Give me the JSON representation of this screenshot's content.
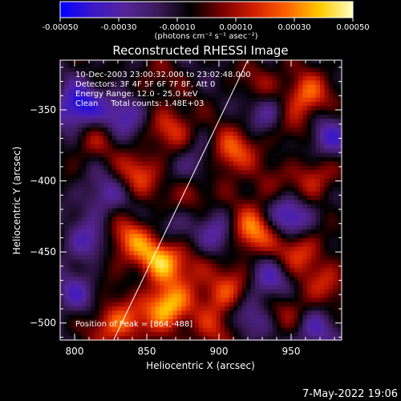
{
  "chart_data": {
    "type": "heatmap",
    "title": "Reconstructed RHESSI Image",
    "xlabel": "Heliocentric X (arcsec)",
    "ylabel": "Heliocentric Y (arcsec)",
    "xlim": [
      790,
      985
    ],
    "ylim": [
      -512,
      -315
    ],
    "x_ticks": [
      800,
      850,
      900,
      950
    ],
    "y_ticks": [
      -350,
      -400,
      -450,
      -500
    ],
    "colorbar": {
      "range": [
        -0.0005,
        0.0005
      ],
      "ticks": [
        "-0.00050",
        "-0.00030",
        "-0.00010",
        "0.00010",
        "0.00030",
        "0.00050"
      ],
      "unit_label": "(photons cm⁻² s⁻¹ asec⁻²)",
      "colormap": [
        "#0000ff",
        "#3a18c8",
        "#55249a",
        "#3b1a58",
        "#000000",
        "#7a0000",
        "#d42000",
        "#ff6600",
        "#ffcc00",
        "#ffffc0"
      ]
    },
    "annotations": [
      "10-Dec-2003 23:00:32.000 to 23:02:48.000",
      "Detectors: 3F 4F 5F 6F 7F 8F, Att 0",
      "Energy Range: 12.0 - 25.0 keV",
      "Clean     Total counts: 1.48E+03"
    ],
    "peak_label": "Position of Peak = [864,-488]",
    "limb_line": {
      "x": [
        827,
        920
      ],
      "y": [
        -512,
        -315
      ]
    },
    "hotspots": [
      {
        "x": 864,
        "y": -488,
        "v": 0.0005
      },
      {
        "x": 860,
        "y": -455,
        "v": 0.00042
      },
      {
        "x": 840,
        "y": -440,
        "v": 0.0003
      },
      {
        "x": 835,
        "y": -500,
        "v": 0.00022
      },
      {
        "x": 823,
        "y": -500,
        "v": 0.00018
      },
      {
        "x": 922,
        "y": -436,
        "v": 0.0004
      },
      {
        "x": 908,
        "y": -380,
        "v": 0.00035
      },
      {
        "x": 905,
        "y": -478,
        "v": 0.00032
      },
      {
        "x": 955,
        "y": -448,
        "v": 0.00028
      },
      {
        "x": 960,
        "y": -340,
        "v": 0.00036
      },
      {
        "x": 945,
        "y": -360,
        "v": 0.00022
      },
      {
        "x": 965,
        "y": -398,
        "v": 0.00025
      },
      {
        "x": 868,
        "y": -362,
        "v": 0.00025
      },
      {
        "x": 845,
        "y": -394,
        "v": 0.00026
      },
      {
        "x": 880,
        "y": -410,
        "v": 0.0002
      },
      {
        "x": 950,
        "y": -490,
        "v": 0.00018
      },
      {
        "x": 975,
        "y": -470,
        "v": 0.0002
      },
      {
        "x": 883,
        "y": -460,
        "v": 0.00018
      },
      {
        "x": 812,
        "y": -372,
        "v": 0.00015
      },
      {
        "x": 930,
        "y": -330,
        "v": 0.00015
      },
      {
        "x": 895,
        "y": -505,
        "v": 0.0002
      },
      {
        "x": 855,
        "y": -330,
        "v": 0.00012
      },
      {
        "x": 820,
        "y": -452,
        "v": 0.00012
      },
      {
        "x": 930,
        "y": -405,
        "v": 0.00012
      }
    ],
    "coldspots": [
      {
        "x": 802,
        "y": -348,
        "v": -0.0004
      },
      {
        "x": 835,
        "y": -352,
        "v": -0.00025
      },
      {
        "x": 938,
        "y": -352,
        "v": -0.0003
      },
      {
        "x": 950,
        "y": -425,
        "v": -0.00032
      },
      {
        "x": 810,
        "y": -445,
        "v": -0.00028
      },
      {
        "x": 898,
        "y": -440,
        "v": -0.00025
      },
      {
        "x": 935,
        "y": -470,
        "v": -0.00022
      },
      {
        "x": 975,
        "y": -370,
        "v": -0.00025
      },
      {
        "x": 820,
        "y": -410,
        "v": -0.0002
      },
      {
        "x": 885,
        "y": -388,
        "v": -0.0002
      },
      {
        "x": 965,
        "y": -505,
        "v": -0.00022
      },
      {
        "x": 800,
        "y": -480,
        "v": -0.0002
      },
      {
        "x": 920,
        "y": -495,
        "v": -0.00018
      },
      {
        "x": 870,
        "y": -430,
        "v": -0.00015
      }
    ]
  },
  "footer": {
    "date": "7-May-2022 19:06"
  }
}
